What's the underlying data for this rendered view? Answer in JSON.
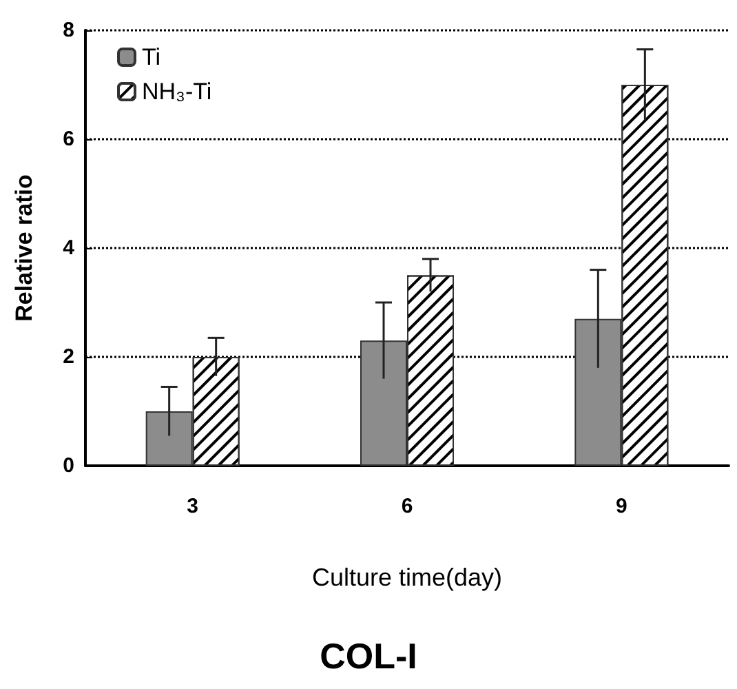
{
  "chart_data": {
    "type": "bar",
    "title": "COL-I",
    "xlabel": "Culture time(day)",
    "ylabel": "Relative ratio",
    "categories": [
      "3",
      "6",
      "9"
    ],
    "series": [
      {
        "name": "Ti",
        "color": "#8c8c8c",
        "values": [
          1.0,
          2.3,
          2.7
        ],
        "errors": [
          0.45,
          0.7,
          0.9
        ]
      },
      {
        "name": "NH₃-Ti",
        "color": "#ffffff",
        "values": [
          2.0,
          3.5,
          7.0
        ],
        "errors": [
          0.35,
          0.3,
          0.65
        ]
      }
    ],
    "ylim": [
      0,
      8
    ],
    "yticks": [
      0,
      2,
      4,
      6,
      8
    ],
    "grid": "y",
    "legend": "top left"
  }
}
